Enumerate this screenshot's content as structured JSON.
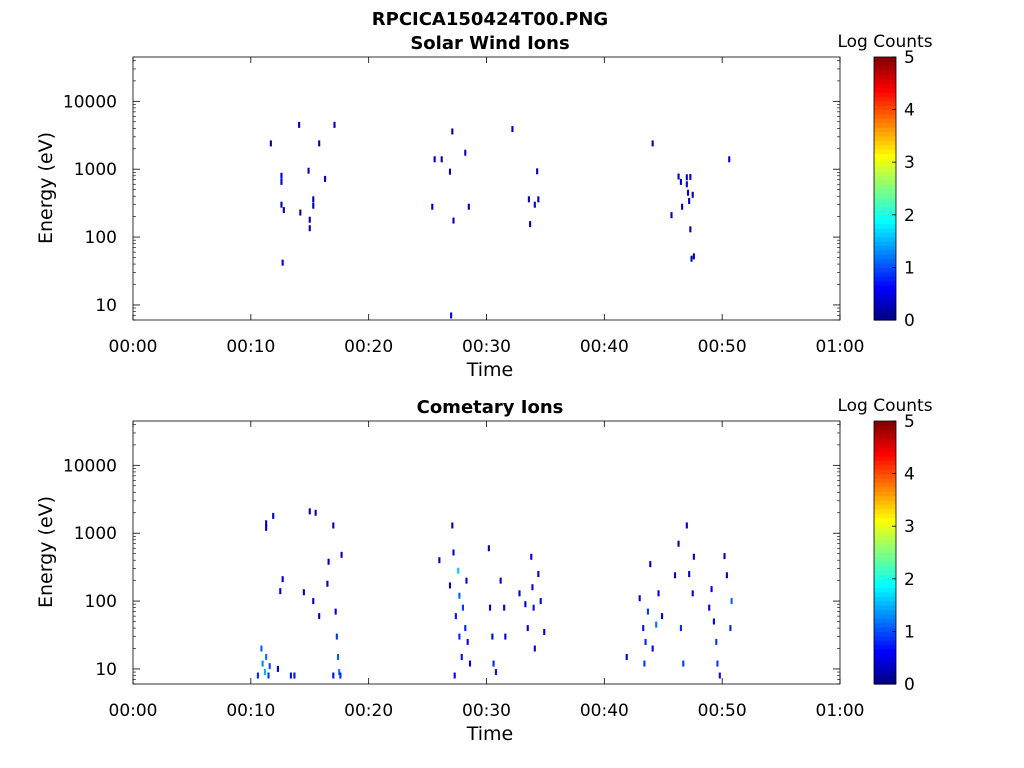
{
  "figure": {
    "title": "RPCICA150424T00.PNG"
  },
  "colorbar": {
    "label": "Log Counts",
    "ticks": [
      "0",
      "1",
      "2",
      "3",
      "4",
      "5"
    ],
    "colors": [
      "#000080",
      "#0000ff",
      "#0080ff",
      "#00ffff",
      "#80ff80",
      "#ffff00",
      "#ff8000",
      "#ff0000",
      "#800000"
    ]
  },
  "chart_data": [
    {
      "type": "heatmap",
      "title": "Solar Wind Ions",
      "xlabel": "Time",
      "ylabel": "Energy (eV)",
      "yscale": "log",
      "xticks": [
        "00:00",
        "00:10",
        "00:20",
        "00:30",
        "00:40",
        "00:50",
        "01:00"
      ],
      "yticks": [
        "10",
        "100",
        "1000",
        "10000"
      ],
      "xlim_minutes": [
        0,
        60
      ],
      "ylim": [
        6,
        45000
      ],
      "clim": [
        0,
        5
      ],
      "points": [
        {
          "t": 11.7,
          "e": 2400,
          "v": 0.3
        },
        {
          "t": 12.6,
          "e": 800,
          "v": 0.5
        },
        {
          "t": 12.6,
          "e": 650,
          "v": 0.4
        },
        {
          "t": 12.6,
          "e": 300,
          "v": 0.3
        },
        {
          "t": 12.8,
          "e": 250,
          "v": 0.3
        },
        {
          "t": 12.7,
          "e": 42,
          "v": 0.4
        },
        {
          "t": 14.1,
          "e": 4500,
          "v": 0.3
        },
        {
          "t": 14.2,
          "e": 230,
          "v": 0.3
        },
        {
          "t": 14.9,
          "e": 950,
          "v": 0.3
        },
        {
          "t": 15.0,
          "e": 180,
          "v": 0.3
        },
        {
          "t": 15.0,
          "e": 135,
          "v": 0.3
        },
        {
          "t": 15.3,
          "e": 360,
          "v": 0.3
        },
        {
          "t": 15.3,
          "e": 290,
          "v": 0.3
        },
        {
          "t": 15.8,
          "e": 2400,
          "v": 0.3
        },
        {
          "t": 16.3,
          "e": 720,
          "v": 0.3
        },
        {
          "t": 17.1,
          "e": 4500,
          "v": 0.3
        },
        {
          "t": 25.4,
          "e": 280,
          "v": 0.3
        },
        {
          "t": 25.6,
          "e": 1400,
          "v": 0.3
        },
        {
          "t": 26.2,
          "e": 1400,
          "v": 0.3
        },
        {
          "t": 26.9,
          "e": 920,
          "v": 0.3
        },
        {
          "t": 27.1,
          "e": 3600,
          "v": 0.3
        },
        {
          "t": 27.2,
          "e": 175,
          "v": 0.3
        },
        {
          "t": 27.0,
          "e": 7,
          "v": 0.5
        },
        {
          "t": 28.2,
          "e": 1750,
          "v": 0.3
        },
        {
          "t": 28.5,
          "e": 280,
          "v": 0.3
        },
        {
          "t": 32.2,
          "e": 3900,
          "v": 0.3
        },
        {
          "t": 33.6,
          "e": 360,
          "v": 0.4
        },
        {
          "t": 33.7,
          "e": 155,
          "v": 0.3
        },
        {
          "t": 34.1,
          "e": 300,
          "v": 0.3
        },
        {
          "t": 34.3,
          "e": 930,
          "v": 0.3
        },
        {
          "t": 34.4,
          "e": 360,
          "v": 0.3
        },
        {
          "t": 44.1,
          "e": 2400,
          "v": 0.3
        },
        {
          "t": 45.7,
          "e": 210,
          "v": 0.3
        },
        {
          "t": 46.3,
          "e": 780,
          "v": 0.5
        },
        {
          "t": 46.5,
          "e": 650,
          "v": 0.4
        },
        {
          "t": 46.6,
          "e": 280,
          "v": 0.3
        },
        {
          "t": 47.0,
          "e": 760,
          "v": 0.5
        },
        {
          "t": 47.0,
          "e": 600,
          "v": 0.4
        },
        {
          "t": 47.1,
          "e": 450,
          "v": 0.4
        },
        {
          "t": 47.2,
          "e": 340,
          "v": 0.3
        },
        {
          "t": 47.3,
          "e": 770,
          "v": 0.5
        },
        {
          "t": 47.3,
          "e": 130,
          "v": 0.3
        },
        {
          "t": 47.5,
          "e": 420,
          "v": 0.3
        },
        {
          "t": 47.4,
          "e": 48,
          "v": 0.3
        },
        {
          "t": 47.6,
          "e": 52,
          "v": 0.3
        },
        {
          "t": 50.6,
          "e": 1400,
          "v": 0.3
        }
      ]
    },
    {
      "type": "heatmap",
      "title": "Cometary Ions",
      "xlabel": "Time",
      "ylabel": "Energy (eV)",
      "yscale": "log",
      "xticks": [
        "00:00",
        "00:10",
        "00:20",
        "00:30",
        "00:40",
        "00:50",
        "01:00"
      ],
      "yticks": [
        "10",
        "100",
        "1000",
        "10000"
      ],
      "xlim_minutes": [
        0,
        60
      ],
      "ylim": [
        6,
        45000
      ],
      "clim": [
        0,
        5
      ],
      "points": [
        {
          "t": 10.6,
          "e": 8,
          "v": 0.8
        },
        {
          "t": 10.9,
          "e": 20,
          "v": 1.1
        },
        {
          "t": 11.0,
          "e": 12,
          "v": 1.3
        },
        {
          "t": 11.2,
          "e": 9,
          "v": 1.5
        },
        {
          "t": 11.3,
          "e": 15,
          "v": 1.2
        },
        {
          "t": 11.5,
          "e": 8,
          "v": 0.9
        },
        {
          "t": 11.6,
          "e": 11,
          "v": 1.0
        },
        {
          "t": 11.3,
          "e": 1200,
          "v": 0.3
        },
        {
          "t": 11.3,
          "e": 1400,
          "v": 0.3
        },
        {
          "t": 11.9,
          "e": 1800,
          "v": 0.3
        },
        {
          "t": 12.5,
          "e": 140,
          "v": 0.3
        },
        {
          "t": 12.7,
          "e": 210,
          "v": 0.3
        },
        {
          "t": 12.3,
          "e": 10,
          "v": 0.5
        },
        {
          "t": 13.4,
          "e": 8,
          "v": 0.7
        },
        {
          "t": 13.7,
          "e": 8,
          "v": 0.7
        },
        {
          "t": 14.5,
          "e": 135,
          "v": 0.3
        },
        {
          "t": 15.0,
          "e": 2100,
          "v": 0.3
        },
        {
          "t": 15.5,
          "e": 2000,
          "v": 0.3
        },
        {
          "t": 15.3,
          "e": 100,
          "v": 0.3
        },
        {
          "t": 15.8,
          "e": 60,
          "v": 0.3
        },
        {
          "t": 16.5,
          "e": 180,
          "v": 0.3
        },
        {
          "t": 16.6,
          "e": 380,
          "v": 0.3
        },
        {
          "t": 17.0,
          "e": 8,
          "v": 0.7
        },
        {
          "t": 17.2,
          "e": 70,
          "v": 0.5
        },
        {
          "t": 17.3,
          "e": 30,
          "v": 0.9
        },
        {
          "t": 17.4,
          "e": 15,
          "v": 1.1
        },
        {
          "t": 17.5,
          "e": 9,
          "v": 1.2
        },
        {
          "t": 17.6,
          "e": 8,
          "v": 0.8
        },
        {
          "t": 17.0,
          "e": 1300,
          "v": 0.3
        },
        {
          "t": 17.7,
          "e": 480,
          "v": 0.3
        },
        {
          "t": 26.0,
          "e": 400,
          "v": 0.3
        },
        {
          "t": 26.9,
          "e": 170,
          "v": 0.4
        },
        {
          "t": 27.1,
          "e": 1300,
          "v": 0.3
        },
        {
          "t": 27.2,
          "e": 520,
          "v": 0.5
        },
        {
          "t": 27.3,
          "e": 8,
          "v": 0.6
        },
        {
          "t": 27.4,
          "e": 60,
          "v": 0.7
        },
        {
          "t": 27.6,
          "e": 280,
          "v": 1.6
        },
        {
          "t": 27.7,
          "e": 120,
          "v": 1.1
        },
        {
          "t": 27.7,
          "e": 30,
          "v": 0.8
        },
        {
          "t": 27.9,
          "e": 15,
          "v": 0.7
        },
        {
          "t": 28.0,
          "e": 80,
          "v": 0.9
        },
        {
          "t": 28.2,
          "e": 40,
          "v": 0.8
        },
        {
          "t": 28.3,
          "e": 200,
          "v": 0.6
        },
        {
          "t": 28.4,
          "e": 25,
          "v": 0.6
        },
        {
          "t": 28.6,
          "e": 12,
          "v": 0.5
        },
        {
          "t": 30.2,
          "e": 600,
          "v": 0.3
        },
        {
          "t": 30.3,
          "e": 80,
          "v": 0.4
        },
        {
          "t": 30.5,
          "e": 30,
          "v": 0.6
        },
        {
          "t": 30.6,
          "e": 12,
          "v": 0.8
        },
        {
          "t": 30.8,
          "e": 9,
          "v": 0.7
        },
        {
          "t": 31.2,
          "e": 200,
          "v": 0.4
        },
        {
          "t": 31.5,
          "e": 80,
          "v": 0.5
        },
        {
          "t": 31.6,
          "e": 30,
          "v": 0.5
        },
        {
          "t": 32.8,
          "e": 130,
          "v": 0.4
        },
        {
          "t": 33.3,
          "e": 90,
          "v": 0.4
        },
        {
          "t": 33.5,
          "e": 40,
          "v": 0.5
        },
        {
          "t": 33.8,
          "e": 450,
          "v": 0.4
        },
        {
          "t": 33.9,
          "e": 160,
          "v": 0.6
        },
        {
          "t": 34.0,
          "e": 80,
          "v": 0.7
        },
        {
          "t": 34.1,
          "e": 20,
          "v": 0.6
        },
        {
          "t": 34.4,
          "e": 250,
          "v": 0.4
        },
        {
          "t": 34.6,
          "e": 100,
          "v": 0.5
        },
        {
          "t": 34.9,
          "e": 35,
          "v": 0.4
        },
        {
          "t": 41.9,
          "e": 15,
          "v": 0.5
        },
        {
          "t": 43.0,
          "e": 110,
          "v": 0.5
        },
        {
          "t": 43.3,
          "e": 40,
          "v": 0.7
        },
        {
          "t": 43.4,
          "e": 12,
          "v": 0.9
        },
        {
          "t": 43.5,
          "e": 25,
          "v": 0.8
        },
        {
          "t": 43.7,
          "e": 70,
          "v": 0.9
        },
        {
          "t": 43.9,
          "e": 350,
          "v": 0.4
        },
        {
          "t": 44.1,
          "e": 20,
          "v": 0.6
        },
        {
          "t": 44.4,
          "e": 45,
          "v": 1.2
        },
        {
          "t": 44.6,
          "e": 130,
          "v": 0.5
        },
        {
          "t": 44.9,
          "e": 60,
          "v": 0.5
        },
        {
          "t": 46.0,
          "e": 240,
          "v": 0.4
        },
        {
          "t": 46.3,
          "e": 700,
          "v": 0.3
        },
        {
          "t": 46.5,
          "e": 40,
          "v": 0.8
        },
        {
          "t": 46.7,
          "e": 12,
          "v": 0.9
        },
        {
          "t": 47.0,
          "e": 1300,
          "v": 0.3
        },
        {
          "t": 47.2,
          "e": 250,
          "v": 0.4
        },
        {
          "t": 47.5,
          "e": 130,
          "v": 0.4
        },
        {
          "t": 47.6,
          "e": 450,
          "v": 0.3
        },
        {
          "t": 48.9,
          "e": 80,
          "v": 0.4
        },
        {
          "t": 49.1,
          "e": 150,
          "v": 0.5
        },
        {
          "t": 49.3,
          "e": 50,
          "v": 0.6
        },
        {
          "t": 49.5,
          "e": 25,
          "v": 0.9
        },
        {
          "t": 49.6,
          "e": 12,
          "v": 0.9
        },
        {
          "t": 49.8,
          "e": 8,
          "v": 0.7
        },
        {
          "t": 50.2,
          "e": 460,
          "v": 0.3
        },
        {
          "t": 50.4,
          "e": 240,
          "v": 0.4
        },
        {
          "t": 50.7,
          "e": 40,
          "v": 0.8
        },
        {
          "t": 50.8,
          "e": 100,
          "v": 1.1
        }
      ]
    }
  ]
}
